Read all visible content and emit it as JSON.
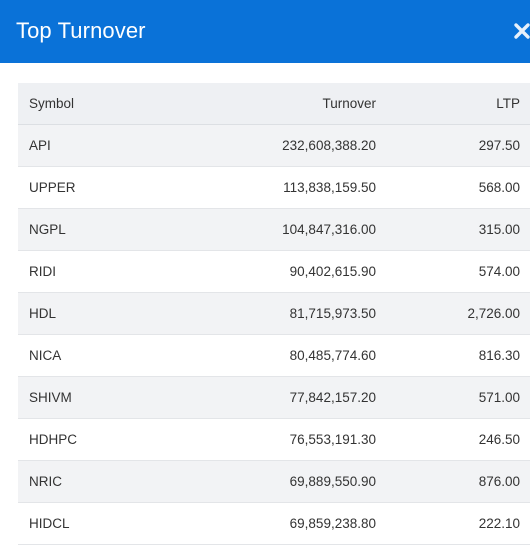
{
  "header": {
    "title": "Top Turnover",
    "close_icon": "close-icon"
  },
  "colors": {
    "header_bg": "#0a72d8",
    "row_alt_bg": "#f2f3f5",
    "header_row_bg": "#eef0f3"
  },
  "table": {
    "columns": [
      "Symbol",
      "Turnover",
      "LTP"
    ],
    "rows": [
      {
        "symbol": "API",
        "turnover": "232,608,388.20",
        "ltp": "297.50"
      },
      {
        "symbol": "UPPER",
        "turnover": "113,838,159.50",
        "ltp": "568.00"
      },
      {
        "symbol": "NGPL",
        "turnover": "104,847,316.00",
        "ltp": "315.00"
      },
      {
        "symbol": "RIDI",
        "turnover": "90,402,615.90",
        "ltp": "574.00"
      },
      {
        "symbol": "HDL",
        "turnover": "81,715,973.50",
        "ltp": "2,726.00"
      },
      {
        "symbol": "NICA",
        "turnover": "80,485,774.60",
        "ltp": "816.30"
      },
      {
        "symbol": "SHIVM",
        "turnover": "77,842,157.20",
        "ltp": "571.00"
      },
      {
        "symbol": "HDHPC",
        "turnover": "76,553,191.30",
        "ltp": "246.50"
      },
      {
        "symbol": "NRIC",
        "turnover": "69,889,550.90",
        "ltp": "876.00"
      },
      {
        "symbol": "HIDCL",
        "turnover": "69,859,238.80",
        "ltp": "222.10"
      }
    ]
  }
}
